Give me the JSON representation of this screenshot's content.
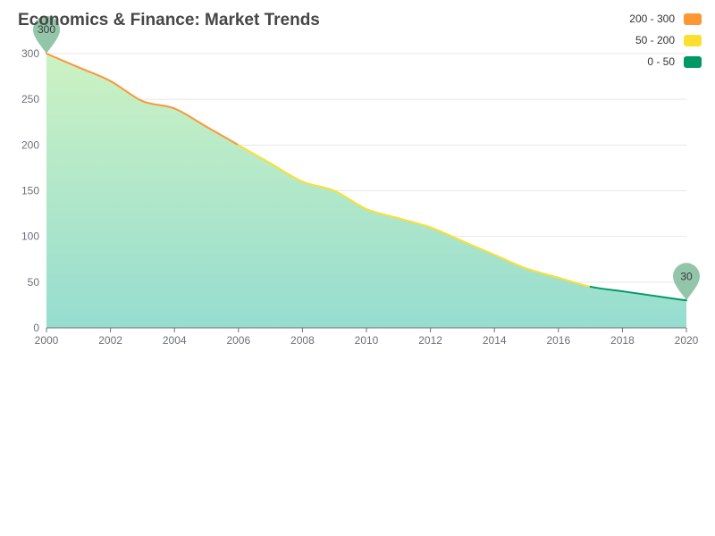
{
  "chart_data": {
    "type": "area",
    "title": "Economics & Finance: Market Trends",
    "x": [
      2000,
      2001,
      2002,
      2003,
      2004,
      2005,
      2006,
      2007,
      2008,
      2009,
      2010,
      2011,
      2012,
      2013,
      2014,
      2015,
      2016,
      2017,
      2018,
      2019,
      2020
    ],
    "values": [
      300,
      285,
      270,
      248,
      240,
      220,
      200,
      180,
      160,
      150,
      130,
      120,
      110,
      95,
      80,
      65,
      55,
      45,
      40,
      35,
      30
    ],
    "xlim": [
      2000,
      2020
    ],
    "ylim": [
      0,
      300
    ],
    "x_ticks": [
      "2000",
      "2002",
      "2004",
      "2006",
      "2008",
      "2010",
      "2012",
      "2014",
      "2016",
      "2018",
      "2020"
    ],
    "y_ticks": [
      "0",
      "50",
      "100",
      "150",
      "200",
      "250",
      "300"
    ],
    "grid": true,
    "legend_position": "top-right",
    "visual_map": [
      {
        "label": "200 - 300",
        "min": 200,
        "max": 300,
        "color": "#fd9734"
      },
      {
        "label": "50 - 200",
        "min": 50,
        "max": 200,
        "color": "#fddf32"
      },
      {
        "label": "0 - 50",
        "min": 0,
        "max": 50,
        "color": "#009966"
      }
    ],
    "markers": [
      {
        "x": 2000,
        "y": 300,
        "label": "300"
      },
      {
        "x": 2020,
        "y": 30,
        "label": "30"
      }
    ],
    "area_gradient": [
      "#ccf2c3",
      "#96ddd0"
    ],
    "marker_color": "#86bfa0"
  }
}
